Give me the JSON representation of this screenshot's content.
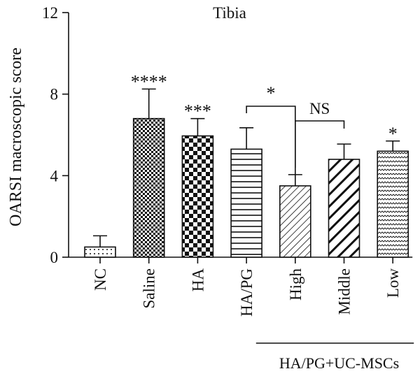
{
  "chart_data": {
    "type": "bar",
    "title": "Tibia",
    "ylabel": "OARSI macroscopic score",
    "xlabel": "",
    "ylim": [
      0,
      12
    ],
    "yticks": [
      "0",
      "4",
      "8",
      "12"
    ],
    "categories": [
      "NC",
      "Saline",
      "HA",
      "HA/PG",
      "High",
      "Middle",
      "Low"
    ],
    "values": [
      0.5,
      6.8,
      5.95,
      5.3,
      3.5,
      4.8,
      5.2
    ],
    "errors": [
      0.55,
      1.45,
      0.85,
      1.05,
      0.55,
      0.75,
      0.5
    ],
    "fill_patterns": [
      "dots",
      "checker-small",
      "checker-large",
      "horizontal-lines",
      "diagonal-thin",
      "diagonal-thick",
      "zigzag"
    ],
    "significance": [
      "",
      "****",
      "***",
      "",
      "",
      "",
      "*"
    ],
    "comparisons": [
      {
        "label": "*",
        "from": "HA/PG",
        "to": "High"
      },
      {
        "label": "NS",
        "from": "High",
        "to": "Middle"
      }
    ],
    "group_label": "HA/PG+UC-MSCs",
    "group_members": [
      "High",
      "Middle",
      "Low"
    ],
    "bar_color": "#111111",
    "grid": false,
    "legend": "none"
  }
}
